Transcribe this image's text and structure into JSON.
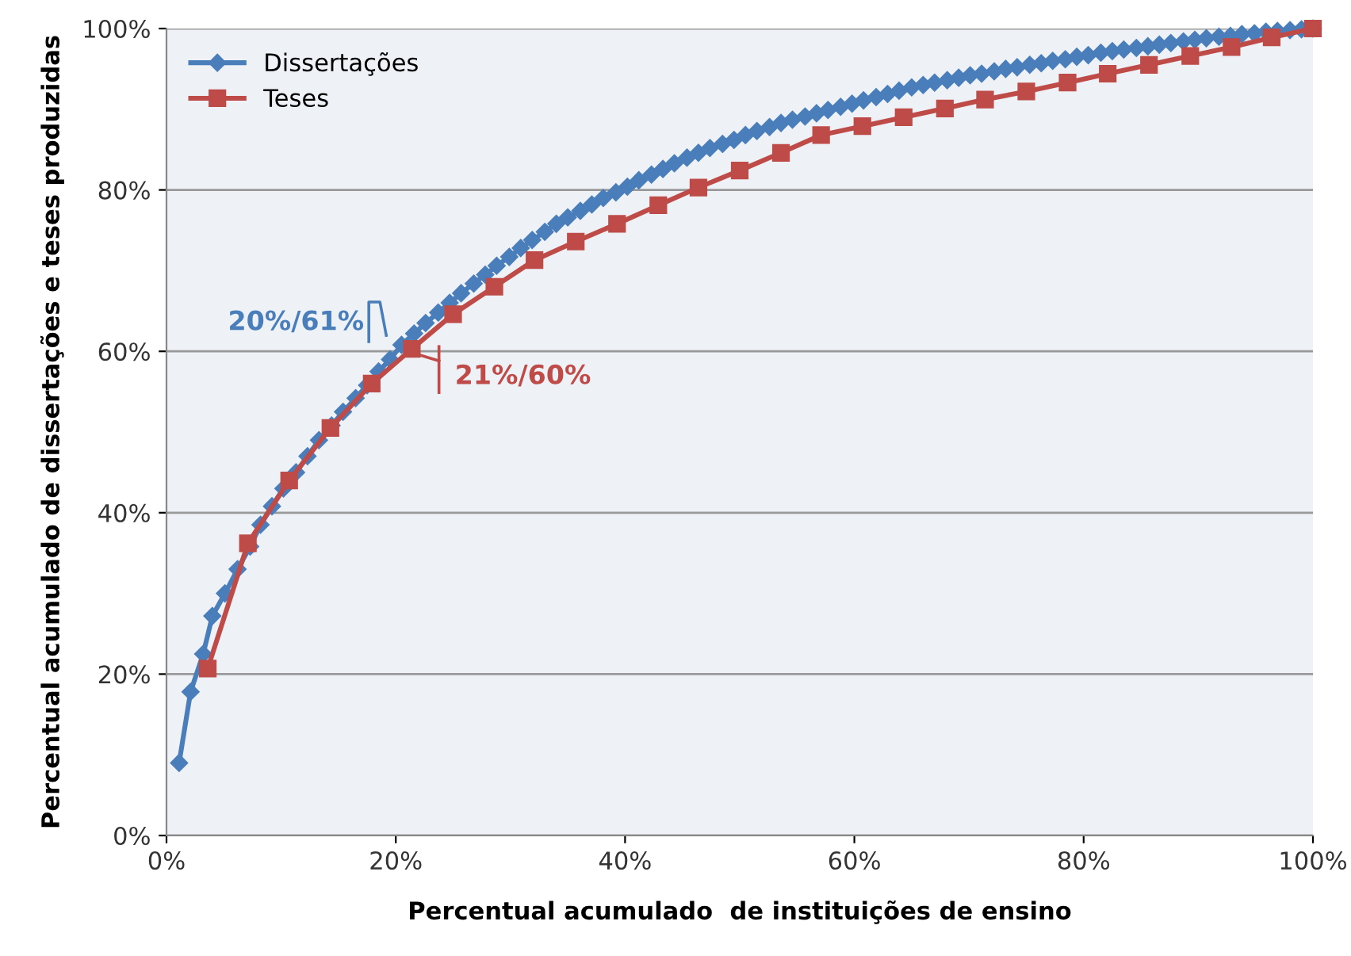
{
  "chart_data": {
    "type": "line",
    "xlabel": "Percentual acumulado  de instituições de ensino",
    "ylabel": "Percentual acumulado de dissertações e teses produzidas",
    "xlim": [
      0,
      100
    ],
    "ylim": [
      0,
      100
    ],
    "xticks": [
      {
        "value": 0,
        "label": "0%"
      },
      {
        "value": 20,
        "label": "20%"
      },
      {
        "value": 40,
        "label": "40%"
      },
      {
        "value": 60,
        "label": "60%"
      },
      {
        "value": 80,
        "label": "80%"
      },
      {
        "value": 100,
        "label": "100%"
      }
    ],
    "yticks": [
      {
        "value": 0,
        "label": "0%"
      },
      {
        "value": 20,
        "label": "20%"
      },
      {
        "value": 40,
        "label": "40%"
      },
      {
        "value": 60,
        "label": "60%"
      },
      {
        "value": 80,
        "label": "80%"
      },
      {
        "value": 100,
        "label": "100%"
      }
    ],
    "grid": "y",
    "legend": "top left",
    "series": [
      {
        "name": "Dissertações",
        "color": "#4a7ebb",
        "marker": "diamond",
        "x": [
          1.1,
          2.1,
          3.2,
          4.0,
          5.1,
          6.2,
          7.3,
          8.2,
          9.2,
          10.2,
          11.3,
          12.3,
          13.3,
          14.4,
          15.4,
          16.5,
          17.5,
          18.5,
          19.5,
          20.5,
          21.6,
          22.6,
          23.7,
          24.7,
          25.7,
          26.8,
          27.8,
          28.8,
          29.9,
          30.9,
          31.9,
          33.0,
          34.0,
          35.0,
          36.1,
          37.1,
          38.1,
          39.2,
          40.2,
          41.2,
          42.3,
          43.3,
          44.3,
          45.4,
          46.4,
          47.4,
          48.5,
          49.5,
          50.5,
          51.5,
          52.6,
          53.6,
          54.6,
          55.7,
          56.7,
          57.7,
          58.8,
          59.8,
          60.8,
          61.9,
          62.9,
          63.9,
          65.0,
          66.0,
          67.0,
          68.1,
          69.1,
          70.1,
          71.1,
          72.2,
          73.2,
          74.2,
          75.3,
          76.3,
          77.3,
          78.4,
          79.4,
          80.4,
          81.5,
          82.5,
          83.5,
          84.6,
          85.6,
          86.6,
          87.6,
          88.7,
          89.7,
          90.7,
          91.8,
          92.8,
          93.8,
          94.9,
          95.9,
          96.9,
          98.0,
          99.0,
          100
        ],
        "values": [
          9,
          17.8,
          22.5,
          27.2,
          30,
          33,
          35.8,
          38.5,
          40.8,
          43,
          45,
          47,
          49,
          50.8,
          52.5,
          54.2,
          55.8,
          57.5,
          59,
          60.8,
          62.2,
          63.5,
          64.8,
          66,
          67.2,
          68.4,
          69.5,
          70.6,
          71.7,
          72.8,
          73.8,
          74.8,
          75.8,
          76.6,
          77.4,
          78.2,
          79.0,
          79.7,
          80.4,
          81.2,
          81.9,
          82.6,
          83.3,
          84.0,
          84.6,
          85.2,
          85.7,
          86.2,
          86.8,
          87.3,
          87.8,
          88.3,
          88.7,
          89.1,
          89.5,
          89.9,
          90.3,
          90.7,
          91.1,
          91.5,
          91.9,
          92.3,
          92.7,
          93.0,
          93.3,
          93.6,
          93.9,
          94.2,
          94.4,
          94.7,
          95.0,
          95.2,
          95.5,
          95.7,
          96.0,
          96.2,
          96.5,
          96.7,
          97.0,
          97.2,
          97.4,
          97.6,
          97.8,
          98.0,
          98.2,
          98.4,
          98.6,
          98.8,
          99.0,
          99.1,
          99.3,
          99.4,
          99.6,
          99.7,
          99.8,
          99.9,
          100
        ]
      },
      {
        "name": "Teses",
        "color": "#be4b48",
        "marker": "square",
        "x": [
          3.6,
          7.1,
          10.7,
          14.3,
          17.9,
          21.4,
          25,
          28.6,
          32.1,
          35.7,
          39.3,
          42.9,
          46.4,
          50,
          53.6,
          57.1,
          60.7,
          64.3,
          67.9,
          71.4,
          75,
          78.6,
          82.1,
          85.7,
          89.3,
          92.9,
          96.4,
          100
        ],
        "values": [
          20.7,
          36.2,
          44,
          50.5,
          56,
          60.3,
          64.6,
          68,
          71.3,
          73.6,
          75.8,
          78.1,
          80.3,
          82.4,
          84.6,
          86.8,
          87.9,
          89,
          90.1,
          91.2,
          92.2,
          93.3,
          94.4,
          95.5,
          96.6,
          97.7,
          98.9,
          100
        ]
      }
    ],
    "annotations": [
      {
        "text": "20%/61%",
        "x": 20,
        "y": 61
      },
      {
        "text": "21%/60%",
        "x": 21,
        "y": 60
      }
    ]
  }
}
